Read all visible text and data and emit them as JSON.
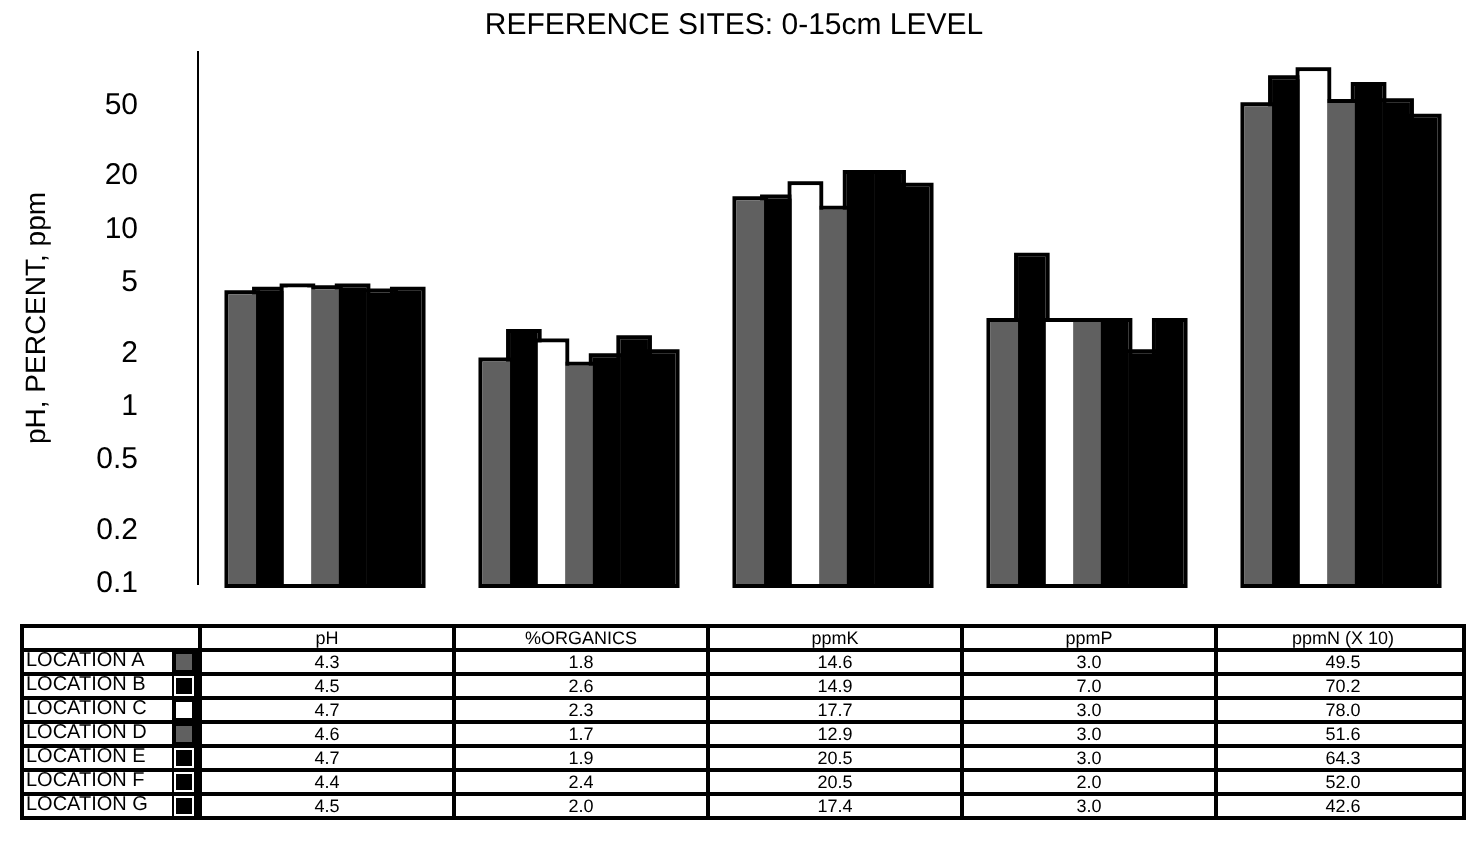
{
  "chart_data": {
    "type": "bar",
    "title": "REFERENCE SITES: 0-15cm LEVEL",
    "ylabel": "pH, PERCENT, ppm",
    "categories": [
      "pH",
      "%ORGANICS",
      "ppmK",
      "ppmP",
      "ppmN (X 10)"
    ],
    "log": true,
    "ylim": [
      0.1,
      100
    ],
    "yticks": [
      0.1,
      0.2,
      0.5,
      1,
      2,
      5,
      10,
      20,
      50
    ],
    "tick_labels": "y",
    "legend": "bottom",
    "series": [
      {
        "name": "LOCATION A",
        "color": "#606060",
        "values": [
          4.3,
          1.8,
          14.6,
          3.0,
          49.5
        ],
        "value_labels": [
          "4.3",
          "1.8",
          "14.6",
          "3.0",
          "49.5"
        ]
      },
      {
        "name": "LOCATION B",
        "color": "#000000",
        "values": [
          4.5,
          2.6,
          14.9,
          7.0,
          70.2
        ],
        "value_labels": [
          "4.5",
          "2.6",
          "14.9",
          "7.0",
          "70.2"
        ]
      },
      {
        "name": "LOCATION C",
        "color": "#ffffff",
        "values": [
          4.7,
          2.3,
          17.7,
          3.0,
          78.0
        ],
        "value_labels": [
          "4.7",
          "2.3",
          "17.7",
          "3.0",
          "78.0"
        ]
      },
      {
        "name": "LOCATION D",
        "color": "#606060",
        "values": [
          4.6,
          1.7,
          12.9,
          3.0,
          51.6
        ],
        "value_labels": [
          "4.6",
          "1.7",
          "12.9",
          "3.0",
          "51.6"
        ]
      },
      {
        "name": "LOCATION E",
        "color": "#000000",
        "values": [
          4.7,
          1.9,
          20.5,
          3.0,
          64.3
        ],
        "value_labels": [
          "4.7",
          "1.9",
          "20.5",
          "3.0",
          "64.3"
        ]
      },
      {
        "name": "LOCATION F",
        "color": "#000000",
        "values": [
          4.4,
          2.4,
          20.5,
          2.0,
          52.0
        ],
        "value_labels": [
          "4.4",
          "2.4",
          "20.5",
          "2.0",
          "52.0"
        ]
      },
      {
        "name": "LOCATION G",
        "color": "#000000",
        "values": [
          4.5,
          2.0,
          17.4,
          3.0,
          42.6
        ],
        "value_labels": [
          "4.5",
          "2.0",
          "17.4",
          "3.0",
          "42.6"
        ]
      }
    ]
  }
}
